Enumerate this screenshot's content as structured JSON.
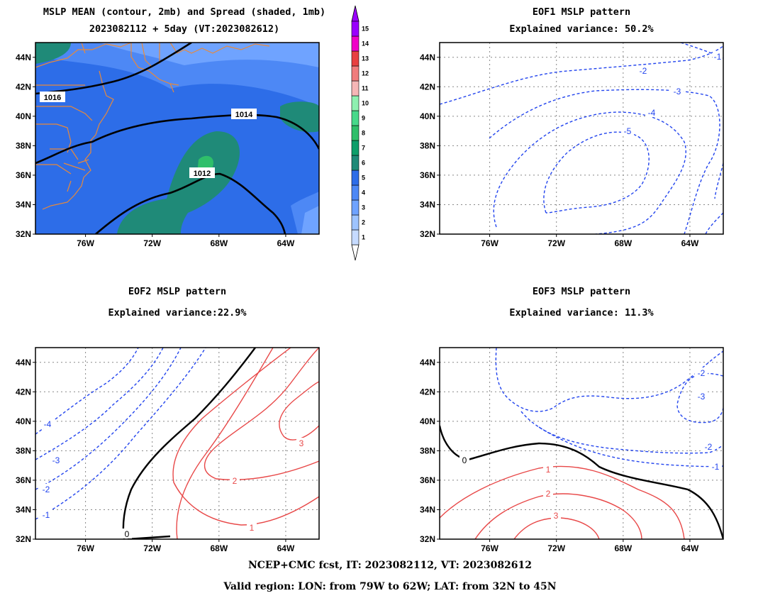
{
  "panels": [
    {
      "id": "mean",
      "title1": "MSLP MEAN (contour, 2mb) and Spread (shaded, 1mb)",
      "title2": "2023082112 + 5day (VT:2023082612)"
    },
    {
      "id": "eof1",
      "title1": "EOF1 MSLP pattern",
      "title2": "Explained variance: 50.2%"
    },
    {
      "id": "eof2",
      "title1": "EOF2 MSLP pattern",
      "title2": "Explained variance:22.9%"
    },
    {
      "id": "eof3",
      "title1": "EOF3 MSLP pattern",
      "title2": "Explained variance: 11.3%"
    }
  ],
  "footer": {
    "line1": "NCEP+CMC fcst, IT: 2023082112, VT: 2023082612",
    "line2": "Valid region: LON: from 79W to 62W; LAT: from 32N to 45N"
  },
  "chart_data": [
    {
      "type": "heatmap",
      "panel": "mean",
      "xlim": [
        -79,
        -62
      ],
      "ylim": [
        32,
        45
      ],
      "xticks": [
        "76W",
        "72W",
        "68W",
        "64W"
      ],
      "yticks": [
        "32N",
        "34N",
        "36N",
        "38N",
        "40N",
        "42N",
        "44N"
      ],
      "grid": false,
      "shaded_field": "Spread (1mb)",
      "colorbar": {
        "levels": [
          "1",
          "2",
          "3",
          "4",
          "5",
          "6",
          "7",
          "8",
          "9",
          "10",
          "11",
          "12",
          "13",
          "14",
          "15"
        ],
        "colors": [
          "#c6dbff",
          "#9ec4ff",
          "#6fa3ff",
          "#4d88f5",
          "#2d6de8",
          "#1f8a78",
          "#0e9e6a",
          "#2fbf6a",
          "#47d98a",
          "#8ef0b0",
          "#f6b6b6",
          "#f07c7c",
          "#e84040",
          "#f000c8",
          "#9a00ff"
        ]
      },
      "contour_labels": [
        "1016",
        "1014",
        "1012"
      ]
    },
    {
      "type": "line",
      "panel": "eof1",
      "xlim": [
        -79,
        -62
      ],
      "ylim": [
        32,
        45
      ],
      "xticks": [
        "76W",
        "72W",
        "68W",
        "64W"
      ],
      "yticks": [
        "32N",
        "34N",
        "36N",
        "38N",
        "40N",
        "42N",
        "44N"
      ],
      "grid": true,
      "contour_labels": [
        "-1",
        "-2",
        "-3",
        "-4",
        "-5"
      ]
    },
    {
      "type": "line",
      "panel": "eof2",
      "xlim": [
        -79,
        -62
      ],
      "ylim": [
        32,
        45
      ],
      "xticks": [
        "76W",
        "72W",
        "68W",
        "64W"
      ],
      "yticks": [
        "32N",
        "34N",
        "36N",
        "38N",
        "40N",
        "42N",
        "44N"
      ],
      "grid": true,
      "contour_labels": [
        "-4",
        "-3",
        "-2",
        "-1",
        "0",
        "3",
        "2",
        "1"
      ]
    },
    {
      "type": "line",
      "panel": "eof3",
      "xlim": [
        -79,
        -62
      ],
      "ylim": [
        32,
        45
      ],
      "xticks": [
        "76W",
        "72W",
        "68W",
        "64W"
      ],
      "yticks": [
        "32N",
        "34N",
        "36N",
        "38N",
        "40N",
        "42N",
        "44N"
      ],
      "grid": true,
      "contour_labels": [
        "-2",
        "-3",
        "-2",
        "-1",
        "0",
        "1",
        "2",
        "3"
      ]
    }
  ],
  "colors": {
    "coast": "#e8893a",
    "neg": "#2244ee",
    "pos": "#e84848",
    "zero": "#000000"
  }
}
